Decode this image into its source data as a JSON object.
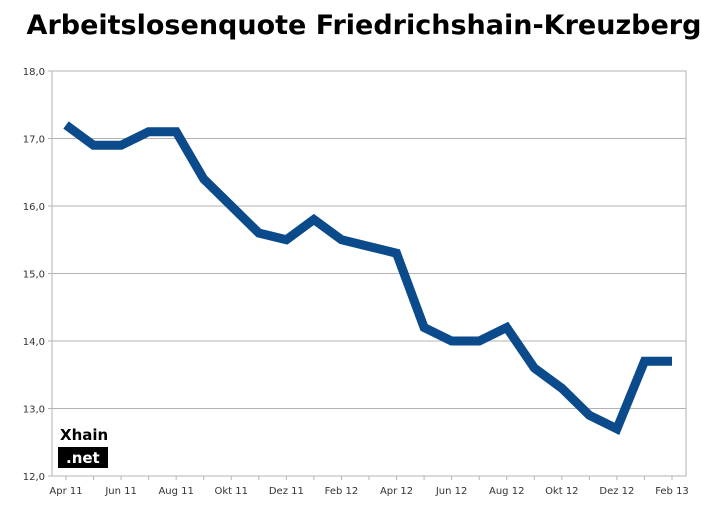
{
  "chart_data": {
    "type": "line",
    "title": "Arbeitslosenquote Friedrichshain-Kreuzberg",
    "xlabel": "",
    "ylabel": "",
    "ylim": [
      12.0,
      18.0
    ],
    "y_ticks": [
      "12,0",
      "13,0",
      "14,0",
      "15,0",
      "16,0",
      "17,0",
      "18,0"
    ],
    "y_tick_values": [
      12,
      13,
      14,
      15,
      16,
      17,
      18
    ],
    "x_tick_labels": [
      "Apr 11",
      "Jun 11",
      "Aug 11",
      "Okt 11",
      "Dez 11",
      "Feb 12",
      "Apr 12",
      "Jun 12",
      "Aug 12",
      "Okt 12",
      "Dez 12",
      "Feb 13"
    ],
    "grid": true,
    "line_color": "#0b4a8b",
    "series": [
      {
        "categories": [
          "Apr 11",
          "Mai 11",
          "Jun 11",
          "Jul 11",
          "Aug 11",
          "Sep 11",
          "Okt 11",
          "Nov 11",
          "Dez 11",
          "Jan 12",
          "Feb 12",
          "Mär 12",
          "Apr 12",
          "Mai 12",
          "Jun 12",
          "Jul 12",
          "Aug 12",
          "Sep 12",
          "Okt 12",
          "Nov 12",
          "Dez 12",
          "Jan 13",
          "Feb 13"
        ],
        "values": [
          17.2,
          16.9,
          16.9,
          17.1,
          17.1,
          16.4,
          16.0,
          15.6,
          15.5,
          15.8,
          15.5,
          15.4,
          15.3,
          14.2,
          14.0,
          14.0,
          14.2,
          13.6,
          13.3,
          12.9,
          12.7,
          13.7,
          13.7
        ]
      }
    ]
  },
  "logo": {
    "top": "Xhain",
    "bottom": ".net"
  }
}
